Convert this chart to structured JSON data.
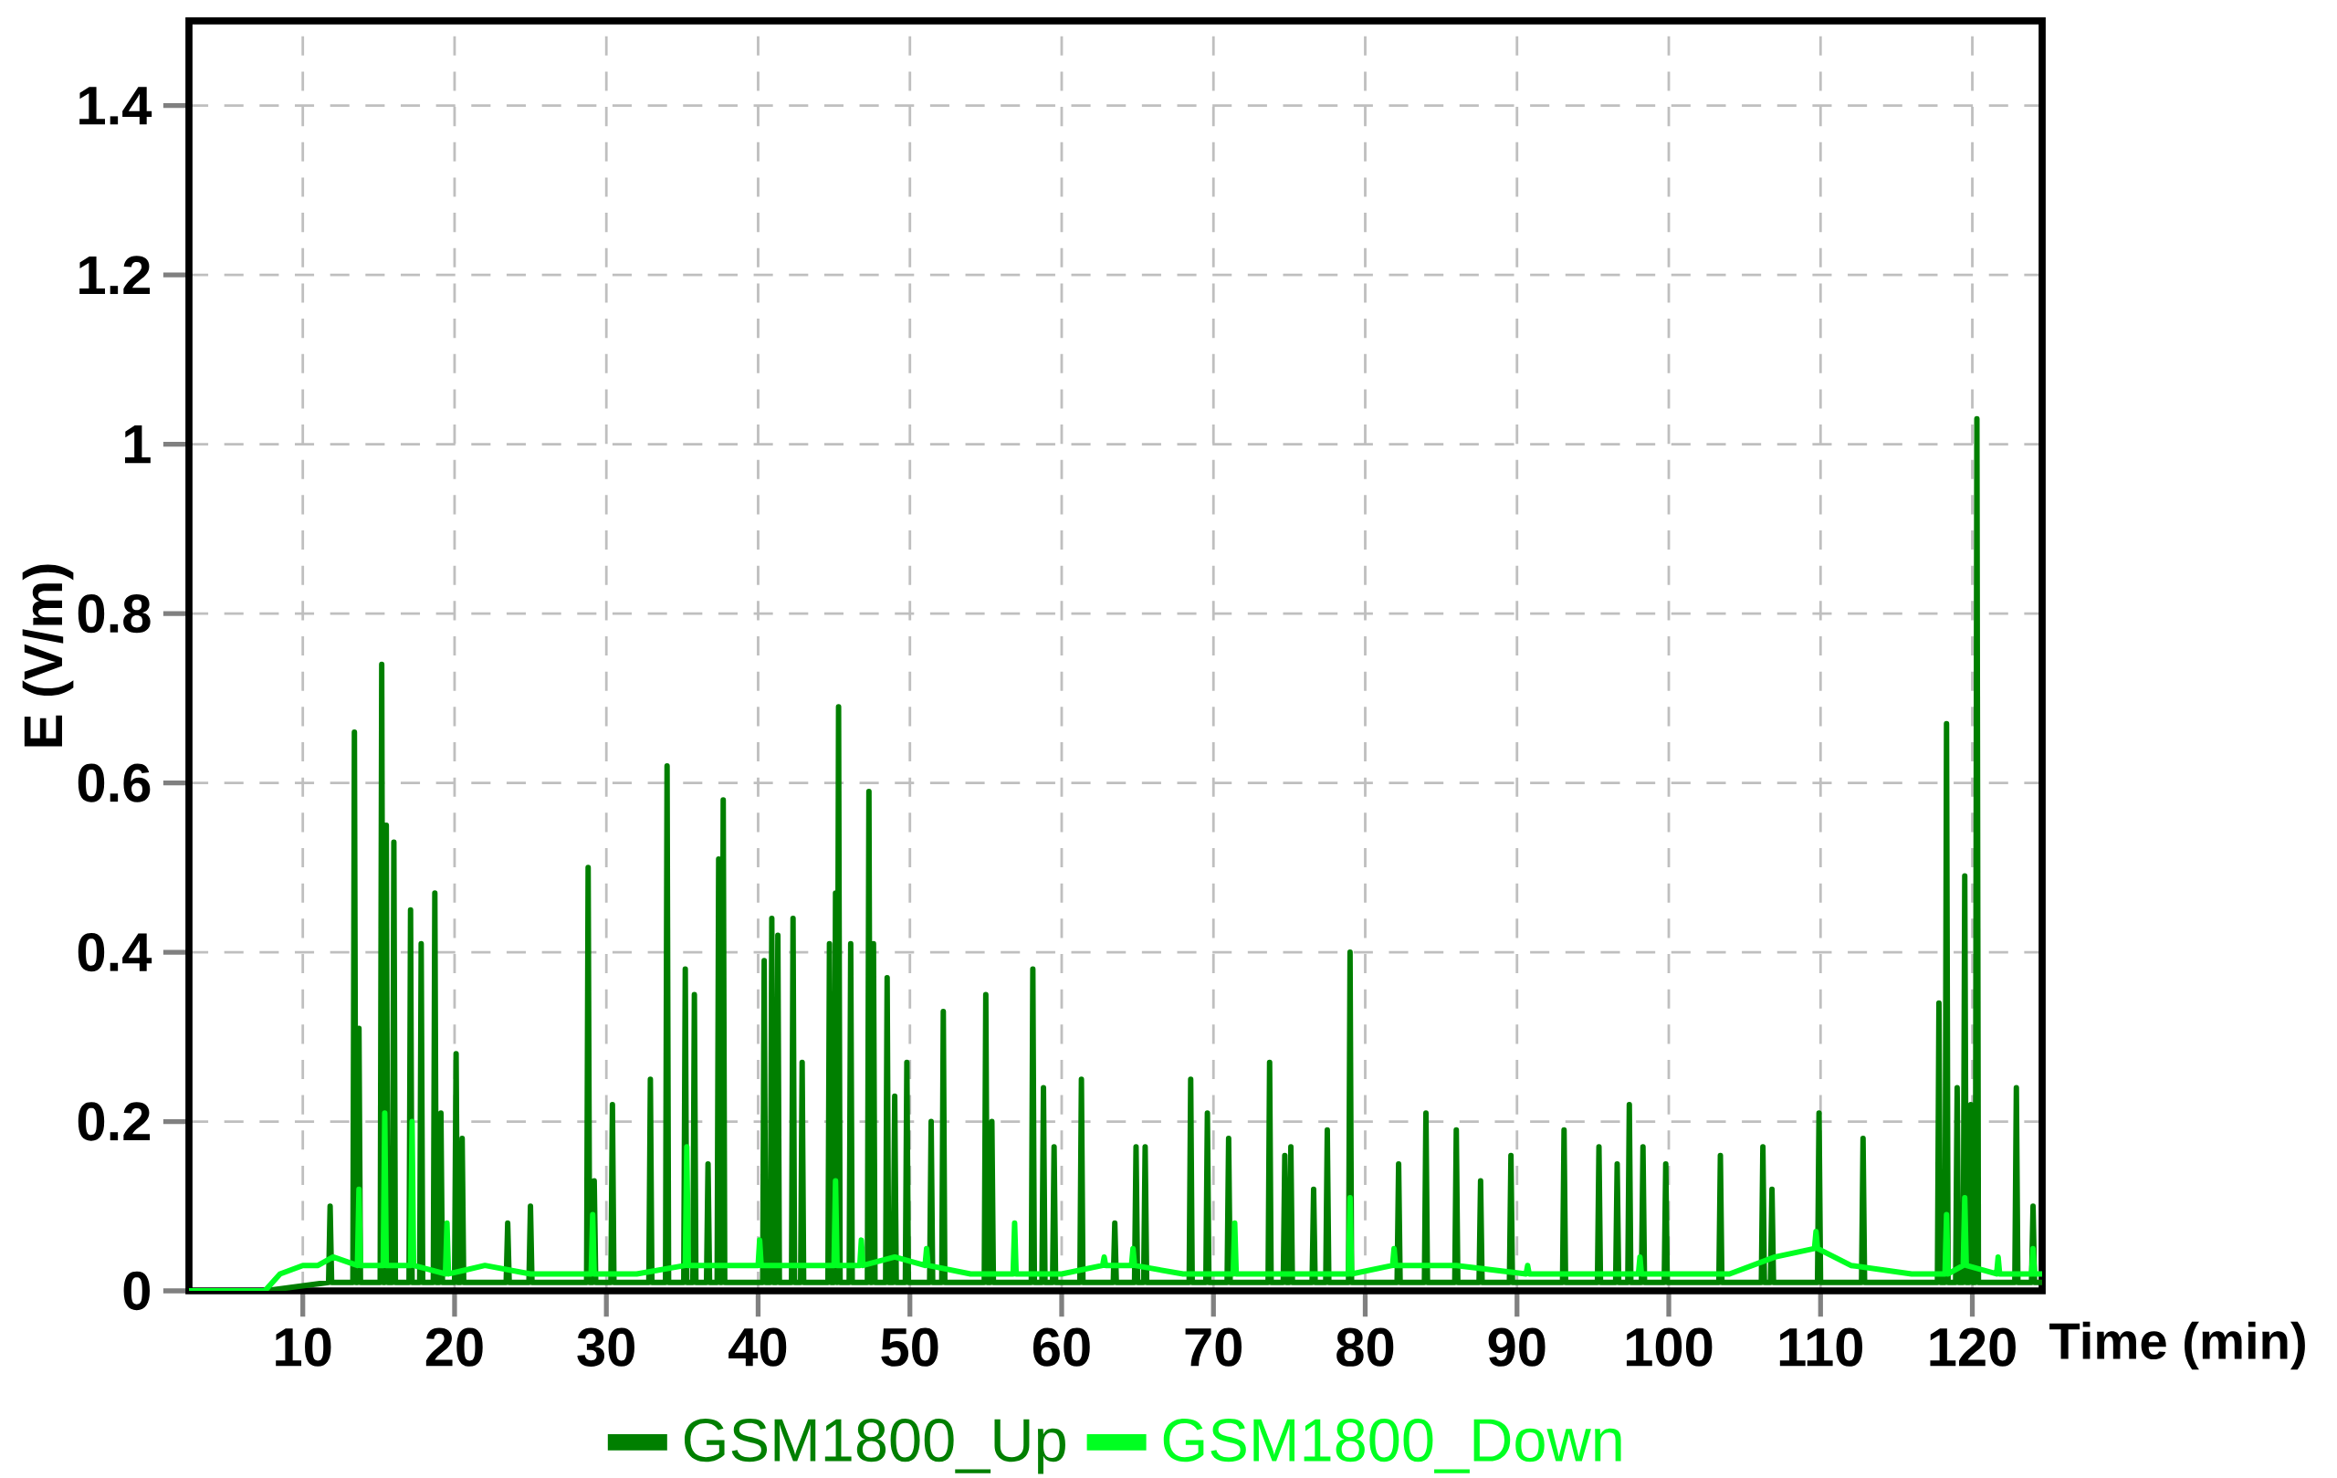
{
  "chart_data": {
    "type": "line",
    "xlabel": "Time (min)",
    "ylabel": "E (V/m)",
    "xlim": [
      2.5,
      124.6
    ],
    "ylim": [
      0,
      1.5
    ],
    "xticks": [
      10,
      20,
      30,
      40,
      50,
      60,
      70,
      80,
      90,
      100,
      110,
      120
    ],
    "yticks": [
      0,
      0.2,
      0.4,
      0.6,
      0.8,
      1,
      1.2,
      1.4
    ],
    "grid": true,
    "legend": "bottom",
    "marker": "none",
    "line_style": "solid",
    "series": [
      {
        "name": "GSM1800_Up",
        "color": "#007f00",
        "x": [
          2.5,
          7.5,
          11.7,
          11.8,
          11.9,
          13.3,
          13.4,
          13.5,
          13.6,
          13.7,
          13.8,
          15.1,
          15.2,
          15.3,
          15.4,
          15.5,
          15.6,
          15.9,
          16.0,
          16.1,
          17.0,
          17.1,
          17.2,
          17.7,
          17.8,
          17.9,
          18.6,
          18.7,
          18.8,
          19.0,
          19.1,
          19.2,
          20.0,
          20.1,
          20.2,
          20.4,
          20.5,
          20.6,
          23.4,
          23.5,
          23.6,
          24.9,
          25.0,
          25.1,
          28.7,
          28.8,
          28.9,
          29.1,
          29.2,
          29.3,
          30.3,
          30.4,
          30.5,
          32.8,
          32.9,
          33.0,
          33.9,
          34.0,
          34.1,
          35.1,
          35.2,
          35.3,
          35.7,
          35.8,
          35.9,
          36.6,
          36.7,
          36.8,
          37.3,
          37.4,
          37.5,
          37.6,
          37.7,
          37.8,
          40.3,
          40.4,
          40.5,
          40.8,
          40.9,
          41.0,
          41.2,
          41.3,
          41.4,
          42.2,
          42.3,
          42.4,
          42.8,
          42.9,
          43.0,
          44.6,
          44.7,
          44.8,
          45.0,
          45.1,
          45.2,
          45.3,
          45.4,
          46.0,
          46.1,
          46.2,
          47.2,
          47.3,
          47.4,
          47.5,
          47.6,
          47.7,
          48.4,
          48.5,
          48.6,
          48.9,
          49.0,
          49.1,
          49.7,
          49.8,
          49.9,
          51.3,
          51.4,
          51.5,
          52.1,
          52.2,
          52.3,
          54.9,
          55.0,
          55.1,
          55.3,
          55.4,
          55.5,
          58.0,
          58.1,
          58.2,
          58.7,
          58.8,
          58.9,
          59.4,
          59.5,
          59.6,
          61.2,
          61.3,
          61.4,
          63.4,
          63.5,
          63.6,
          64.8,
          64.9,
          65.0,
          65.4,
          65.5,
          65.6,
          68.4,
          68.5,
          68.6,
          69.5,
          69.6,
          69.7,
          70.9,
          71.0,
          71.1,
          73.6,
          73.7,
          73.8,
          74.6,
          74.7,
          74.8,
          75.0,
          75.1,
          75.2,
          76.5,
          76.6,
          76.7,
          77.4,
          77.5,
          77.6,
          78.9,
          79.0,
          79.1,
          82.1,
          82.2,
          82.3,
          83.9,
          84.0,
          84.1,
          85.9,
          86.0,
          86.1,
          87.5,
          87.6,
          87.7,
          89.5,
          89.6,
          89.7,
          93.0,
          93.1,
          93.2,
          95.3,
          95.4,
          95.5,
          96.5,
          96.6,
          96.7,
          97.3,
          97.4,
          97.5,
          98.2,
          98.3,
          98.4,
          99.7,
          99.8,
          99.9,
          103.3,
          103.4,
          103.5,
          106.1,
          106.2,
          106.3,
          106.7,
          106.8,
          106.9,
          109.8,
          109.9,
          110.0,
          112.7,
          112.8,
          112.9,
          117.7,
          117.8,
          117.9,
          118.2,
          118.3,
          118.4,
          118.9,
          119.0,
          119.1,
          119.4,
          119.5,
          119.6,
          119.8,
          119.9,
          120.0,
          120.2,
          120.3,
          120.4,
          122.8,
          122.9,
          123.0,
          123.9,
          124.0,
          124.1,
          124.6
        ],
        "values": [
          0,
          0,
          0.01,
          0.1,
          0.01,
          0.01,
          0.66,
          0.01,
          0.01,
          0.31,
          0.01,
          0.01,
          0.74,
          0.01,
          0.01,
          0.55,
          0.01,
          0.01,
          0.53,
          0.01,
          0.01,
          0.45,
          0.01,
          0.01,
          0.41,
          0.01,
          0.01,
          0.47,
          0.01,
          0.01,
          0.21,
          0.01,
          0.01,
          0.28,
          0.01,
          0.01,
          0.18,
          0.01,
          0.01,
          0.08,
          0.01,
          0.01,
          0.1,
          0.01,
          0.01,
          0.5,
          0.01,
          0.01,
          0.13,
          0.01,
          0.01,
          0.22,
          0.01,
          0.01,
          0.25,
          0.01,
          0.01,
          0.62,
          0.01,
          0.01,
          0.38,
          0.01,
          0.01,
          0.35,
          0.01,
          0.01,
          0.15,
          0.01,
          0.01,
          0.51,
          0.01,
          0.01,
          0.58,
          0.01,
          0.01,
          0.39,
          0.01,
          0.01,
          0.44,
          0.01,
          0.01,
          0.42,
          0.01,
          0.01,
          0.44,
          0.01,
          0.01,
          0.27,
          0.01,
          0.01,
          0.41,
          0.01,
          0.01,
          0.47,
          0.01,
          0.69,
          0.01,
          0.01,
          0.41,
          0.01,
          0.01,
          0.59,
          0.01,
          0.01,
          0.41,
          0.01,
          0.01,
          0.37,
          0.01,
          0.01,
          0.23,
          0.01,
          0.01,
          0.27,
          0.01,
          0.01,
          0.2,
          0.01,
          0.01,
          0.33,
          0.01,
          0.01,
          0.35,
          0.01,
          0.01,
          0.2,
          0.01,
          0.01,
          0.38,
          0.01,
          0.01,
          0.24,
          0.01,
          0.01,
          0.17,
          0.01,
          0.01,
          0.25,
          0.01,
          0.01,
          0.08,
          0.01,
          0.01,
          0.17,
          0.01,
          0.01,
          0.17,
          0.01,
          0.01,
          0.25,
          0.01,
          0.01,
          0.21,
          0.01,
          0.01,
          0.18,
          0.01,
          0.01,
          0.27,
          0.01,
          0.01,
          0.16,
          0.01,
          0.01,
          0.17,
          0.01,
          0.01,
          0.12,
          0.01,
          0.01,
          0.19,
          0.01,
          0.01,
          0.4,
          0.01,
          0.01,
          0.15,
          0.01,
          0.01,
          0.21,
          0.01,
          0.01,
          0.19,
          0.01,
          0.01,
          0.13,
          0.01,
          0.01,
          0.16,
          0.01,
          0.01,
          0.19,
          0.01,
          0.01,
          0.17,
          0.01,
          0.01,
          0.15,
          0.01,
          0.01,
          0.22,
          0.01,
          0.01,
          0.17,
          0.01,
          0.01,
          0.15,
          0.01,
          0.01,
          0.16,
          0.01,
          0.01,
          0.17,
          0.01,
          0.01,
          0.12,
          0.01,
          0.01,
          0.21,
          0.01,
          0.01,
          0.18,
          0.01,
          0.01,
          0.34,
          0.01,
          0.01,
          0.67,
          0.01,
          0.01,
          0.24,
          0.01,
          0.01,
          0.49,
          0.01,
          0.01,
          0.22,
          0.01,
          0.01,
          1.03,
          0.01,
          0.01,
          0.24,
          0.01,
          0.01,
          0.1,
          0.01,
          0.01
        ]
      },
      {
        "name": "GSM1800_Down",
        "color": "#00ff21",
        "x": [
          2.5,
          7.5,
          8.5,
          10,
          11,
          12,
          13.6,
          13.7,
          13.8,
          15.3,
          15.4,
          15.5,
          17.1,
          17.2,
          17.3,
          19.4,
          19.5,
          19.6,
          22,
          25,
          29.0,
          29.1,
          29.2,
          32,
          35.2,
          35.3,
          35.4,
          38,
          40.0,
          40.1,
          40.2,
          43,
          45.0,
          45.1,
          45.2,
          46.7,
          46.8,
          46.9,
          49,
          51.0,
          51.1,
          51.2,
          54,
          56.8,
          56.9,
          57.0,
          60,
          62.7,
          62.8,
          62.9,
          64.6,
          64.7,
          64.8,
          68,
          71.3,
          71.4,
          71.5,
          75,
          78.9,
          79.0,
          79.1,
          81.8,
          81.9,
          82.0,
          86,
          90.6,
          90.7,
          90.8,
          95,
          98.0,
          98.1,
          98.2,
          101.1,
          104,
          107,
          109.6,
          109.7,
          109.8,
          112,
          116,
          118.2,
          118.3,
          118.4,
          119.4,
          119.5,
          119.6,
          121.6,
          121.7,
          121.8,
          123.9,
          124.0,
          124.1,
          124.6
        ],
        "values": [
          0,
          0,
          0.02,
          0.03,
          0.03,
          0.04,
          0.03,
          0.12,
          0.03,
          0.03,
          0.21,
          0.03,
          0.03,
          0.2,
          0.03,
          0.02,
          0.08,
          0.02,
          0.03,
          0.02,
          0.02,
          0.09,
          0.02,
          0.02,
          0.03,
          0.17,
          0.03,
          0.03,
          0.03,
          0.06,
          0.03,
          0.03,
          0.03,
          0.13,
          0.03,
          0.03,
          0.06,
          0.03,
          0.04,
          0.03,
          0.05,
          0.03,
          0.02,
          0.02,
          0.08,
          0.02,
          0.02,
          0.03,
          0.04,
          0.03,
          0.03,
          0.05,
          0.03,
          0.02,
          0.02,
          0.08,
          0.02,
          0.02,
          0.02,
          0.11,
          0.02,
          0.03,
          0.05,
          0.03,
          0.03,
          0.02,
          0.03,
          0.02,
          0.02,
          0.02,
          0.04,
          0.02,
          0.02,
          0.02,
          0.04,
          0.05,
          0.07,
          0.05,
          0.03,
          0.02,
          0.02,
          0.09,
          0.02,
          0.03,
          0.11,
          0.03,
          0.02,
          0.04,
          0.02,
          0.02,
          0.05,
          0.02,
          0.02
        ]
      }
    ]
  }
}
